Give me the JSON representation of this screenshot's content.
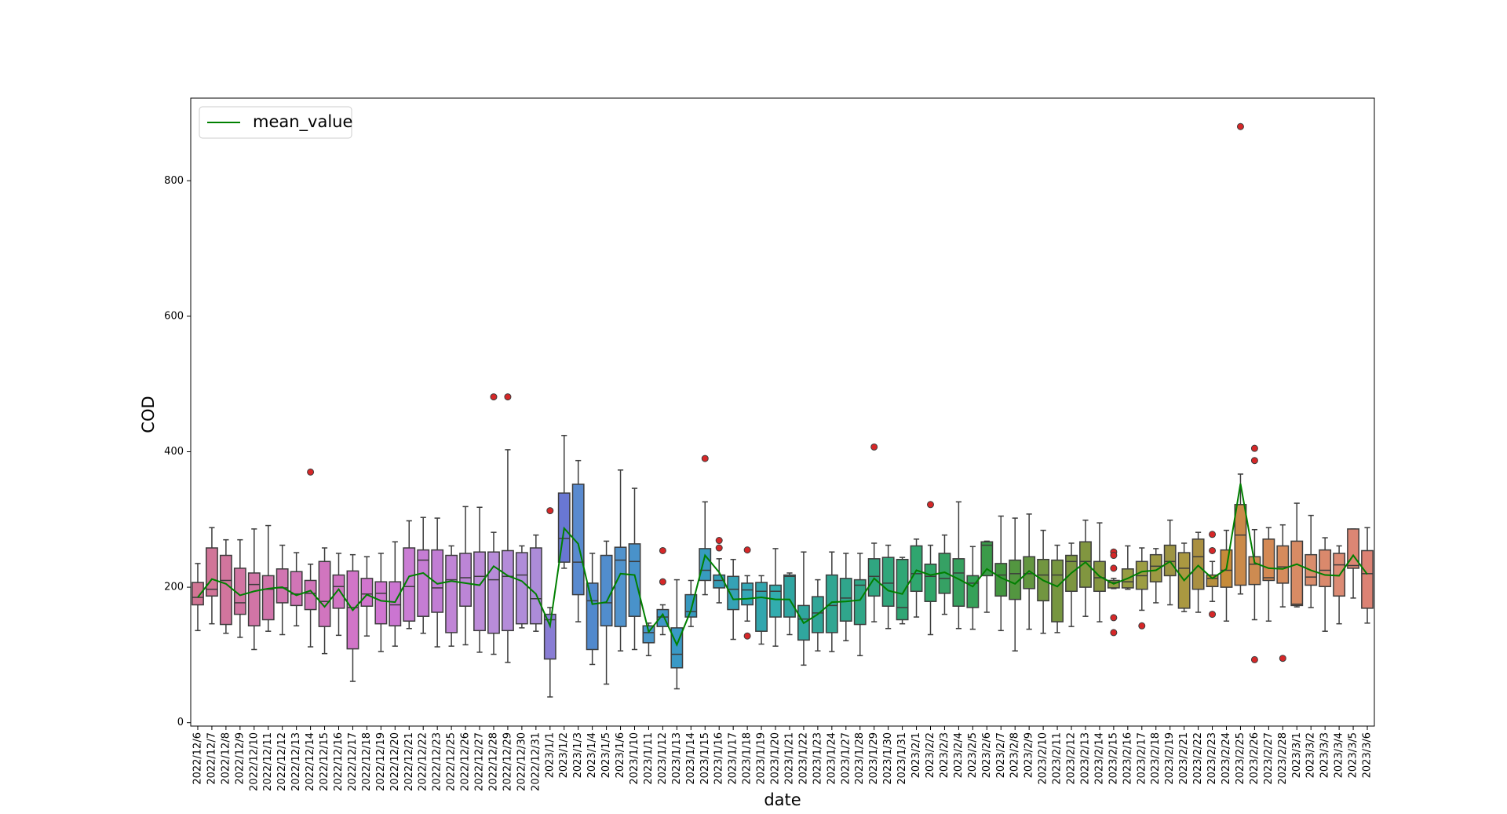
{
  "chart_data": {
    "type": "box",
    "x_label": "date",
    "y_label": "COD",
    "categories": [
      "2022/12/6",
      "2022/12/7",
      "2022/12/8",
      "2022/12/9",
      "2022/12/10",
      "2022/12/11",
      "2022/12/12",
      "2022/12/13",
      "2022/12/14",
      "2022/12/15",
      "2022/12/16",
      "2022/12/17",
      "2022/12/18",
      "2022/12/19",
      "2022/12/20",
      "2022/12/21",
      "2022/12/22",
      "2022/12/23",
      "2022/12/25",
      "2022/12/26",
      "2022/12/27",
      "2022/12/28",
      "2022/12/29",
      "2022/12/30",
      "2022/12/31",
      "2023/1/1",
      "2023/1/2",
      "2023/1/3",
      "2023/1/4",
      "2023/1/5",
      "2023/1/6",
      "2023/1/10",
      "2023/1/11",
      "2023/1/12",
      "2023/1/13",
      "2023/1/14",
      "2023/1/15",
      "2023/1/16",
      "2023/1/17",
      "2023/1/18",
      "2023/1/19",
      "2023/1/20",
      "2023/1/21",
      "2023/1/22",
      "2023/1/23",
      "2023/1/24",
      "2023/1/27",
      "2023/1/28",
      "2023/1/29",
      "2023/1/30",
      "2023/1/31",
      "2023/2/1",
      "2023/2/2",
      "2023/2/3",
      "2023/2/4",
      "2023/2/5",
      "2023/2/6",
      "2023/2/7",
      "2023/2/8",
      "2023/2/9",
      "2023/2/10",
      "2023/2/11",
      "2023/2/12",
      "2023/2/13",
      "2023/2/14",
      "2023/2/15",
      "2023/2/16",
      "2023/2/17",
      "2023/2/18",
      "2023/2/19",
      "2023/2/21",
      "2023/2/22",
      "2023/2/23",
      "2023/2/24",
      "2023/2/25",
      "2023/2/26",
      "2023/2/27",
      "2023/2/28",
      "2023/3/1",
      "2023/3/2",
      "2023/3/3",
      "2023/3/4",
      "2023/3/5",
      "2023/3/6"
    ],
    "whisker_low": [
      136,
      146,
      132,
      126,
      108,
      135,
      130,
      143,
      112,
      102,
      129,
      61,
      128,
      105,
      113,
      139,
      132,
      112,
      113,
      115,
      104,
      101,
      89,
      140,
      135,
      38,
      228,
      149,
      86,
      57,
      106,
      108,
      99,
      130,
      50,
      142,
      189,
      177,
      123,
      150,
      116,
      113,
      130,
      85,
      106,
      105,
      121,
      99,
      149,
      139,
      146,
      156,
      130,
      160,
      139,
      138,
      163,
      136,
      106,
      138,
      132,
      133,
      142,
      157,
      149,
      198,
      197,
      166,
      177,
      174,
      164,
      163,
      179,
      150,
      190,
      152,
      150,
      171,
      171,
      170,
      135,
      146,
      184,
      147
    ],
    "q1": [
      174,
      187,
      145,
      160,
      143,
      152,
      177,
      173,
      167,
      142,
      169,
      109,
      172,
      146,
      143,
      150,
      157,
      163,
      133,
      172,
      136,
      132,
      136,
      146,
      146,
      94,
      237,
      189,
      108,
      143,
      142,
      157,
      118,
      142,
      81,
      156,
      210,
      199,
      167,
      174,
      135,
      156,
      156,
      122,
      133,
      133,
      150,
      145,
      187,
      172,
      152,
      194,
      179,
      191,
      172,
      170,
      217,
      187,
      182,
      198,
      180,
      149,
      194,
      200,
      194,
      199,
      199,
      197,
      208,
      217,
      169,
      197,
      201,
      200,
      203,
      204,
      210,
      206,
      173,
      203,
      201,
      187,
      228,
      169
    ],
    "median": [
      185,
      197,
      210,
      177,
      204,
      197,
      199,
      190,
      191,
      179,
      201,
      170,
      190,
      191,
      174,
      201,
      240,
      199,
      211,
      214,
      216,
      211,
      216,
      218,
      183,
      152,
      272,
      237,
      180,
      177,
      240,
      238,
      133,
      156,
      101,
      164,
      225,
      210,
      197,
      196,
      194,
      194,
      216,
      153,
      162,
      173,
      184,
      203,
      216,
      206,
      170,
      220,
      216,
      213,
      221,
      206,
      262,
      218,
      220,
      220,
      218,
      218,
      238,
      238,
      214,
      207,
      208,
      217,
      231,
      238,
      228,
      245,
      213,
      225,
      277,
      234,
      214,
      230,
      175,
      215,
      225,
      233,
      232,
      220
    ],
    "q3": [
      207,
      258,
      247,
      228,
      221,
      217,
      227,
      223,
      210,
      238,
      218,
      224,
      213,
      208,
      208,
      258,
      255,
      255,
      247,
      250,
      252,
      252,
      254,
      251,
      258,
      160,
      339,
      352,
      206,
      247,
      259,
      264,
      143,
      167,
      140,
      189,
      257,
      218,
      216,
      206,
      207,
      203,
      218,
      173,
      186,
      218,
      213,
      211,
      242,
      244,
      241,
      261,
      234,
      250,
      242,
      217,
      267,
      235,
      240,
      245,
      241,
      240,
      247,
      267,
      238,
      210,
      227,
      238,
      248,
      262,
      251,
      271,
      218,
      255,
      322,
      245,
      271,
      261,
      268,
      248,
      255,
      250,
      286,
      254
    ],
    "whisker_high": [
      235,
      288,
      270,
      270,
      286,
      291,
      262,
      251,
      234,
      258,
      250,
      248,
      245,
      250,
      267,
      298,
      303,
      302,
      261,
      319,
      318,
      281,
      403,
      261,
      277,
      170,
      424,
      387,
      250,
      268,
      373,
      346,
      147,
      174,
      211,
      210,
      326,
      242,
      241,
      217,
      217,
      257,
      221,
      252,
      211,
      252,
      250,
      250,
      265,
      262,
      244,
      271,
      262,
      277,
      326,
      260,
      268,
      305,
      302,
      308,
      284,
      262,
      265,
      299,
      295,
      213,
      261,
      258,
      257,
      299,
      265,
      281,
      238,
      284,
      367,
      285,
      288,
      292,
      324,
      306,
      273,
      261,
      286,
      288
    ],
    "outliers": [
      [],
      [],
      [],
      [],
      [],
      [],
      [],
      [],
      [
        370
      ],
      [],
      [],
      [],
      [],
      [],
      [],
      [],
      [],
      [],
      [],
      [],
      [],
      [
        481
      ],
      [
        481
      ],
      [],
      [],
      [
        313
      ],
      [],
      [],
      [],
      [],
      [],
      [],
      [],
      [
        254,
        208
      ],
      [],
      [],
      [
        390
      ],
      [
        269,
        258
      ],
      [],
      [
        255,
        128
      ],
      [],
      [],
      [],
      [],
      [],
      [],
      [],
      [],
      [
        407
      ],
      [],
      [],
      [],
      [
        322
      ],
      [],
      [],
      [],
      [],
      [],
      [],
      [],
      [],
      [],
      [],
      [],
      [],
      [
        252,
        247,
        228,
        155,
        133
      ],
      [],
      [
        143
      ],
      [],
      [],
      [],
      [],
      [
        278,
        254,
        160
      ],
      [],
      [
        880
      ],
      [
        405,
        387,
        93
      ],
      [],
      [
        95
      ],
      [],
      [],
      [],
      [],
      [],
      []
    ],
    "colors": [
      "hsl(340,50%,64%)",
      "hsl(337,50%,64%)",
      "hsl(334,50%,64%)",
      "hsl(331,50%,64%)",
      "hsl(328,50%,64%)",
      "hsl(324,50%,64%)",
      "hsl(321,50%,64%)",
      "hsl(318,50%,64%)",
      "hsl(315,50%,64%)",
      "hsl(312,50%,64%)",
      "hsl(309,50%,64%)",
      "hsl(306,50%,64%)",
      "hsl(302,50%,64%)",
      "hsl(299,50%,64%)",
      "hsl(296,50%,64%)",
      "hsl(293,50%,66%)",
      "hsl(290,50%,66%)",
      "hsl(287,50%,66%)",
      "hsl(284,50%,68%)",
      "hsl(281,50%,68%)",
      "hsl(278,50%,70%)",
      "hsl(274,50%,70%)",
      "hsl(271,50%,70%)",
      "hsl(268,50%,70%)",
      "hsl(265,50%,70%)",
      "hsl(248,50%,66%)",
      "hsl(232,55%,62%)",
      "hsl(215,55%,58%)",
      "hsl(213,55%,56%)",
      "hsl(211,55%,56%)",
      "hsl(208,55%,56%)",
      "hsl(206,55%,54%)",
      "hsl(204,55%,54%)",
      "hsl(202,55%,52%)",
      "hsl(199,55%,50%)",
      "hsl(197,55%,48%)",
      "hsl(195,55%,48%)",
      "hsl(192,55%,46%)",
      "hsl(189,55%,46%)",
      "hsl(187,55%,46%)",
      "hsl(184,55%,44%)",
      "hsl(181,55%,44%)",
      "hsl(178,55%,42%)",
      "hsl(176,55%,42%)",
      "hsl(173,55%,42%)",
      "hsl(170,55%,42%)",
      "hsl(167,55%,42%)",
      "hsl(164,55%,42%)",
      "hsl(161,55%,42%)",
      "hsl(158,55%,42%)",
      "hsl(155,55%,42%)",
      "hsl(152,55%,42%)",
      "hsl(149,55%,42%)",
      "hsl(146,50%,42%)",
      "hsl(143,50%,42%)",
      "hsl(140,50%,42%)",
      "hsl(129,45%,42%)",
      "hsl(118,40%,42%)",
      "hsl(107,40%,42%)",
      "hsl(96,40%,42%)",
      "hsl(85,40%,42%)",
      "hsl(82,40%,42%)",
      "hsl(78,40%,42%)",
      "hsl(75,40%,42%)",
      "hsl(71,40%,42%)",
      "hsl(68,40%,44%)",
      "hsl(64,40%,44%)",
      "hsl(61,40%,44%)",
      "hsl(57,40%,44%)",
      "hsl(54,40%,44%)",
      "hsl(50,45%,46%)",
      "hsl(45,45%,46%)",
      "hsl(40,50%,48%)",
      "hsl(35,55%,50%)",
      "hsl(30,55%,54%)",
      "hsl(28,55%,56%)",
      "hsl(25,60%,58%)",
      "hsl(23,60%,60%)",
      "hsl(20,60%,62%)",
      "hsl(18,60%,64%)",
      "hsl(16,60%,64%)",
      "hsl(13,60%,66%)",
      "hsl(10,60%,66%)",
      "hsl(8,60%,66%)"
    ],
    "lines": [
      {
        "name": "mean_value",
        "color": "green",
        "values": [
          185,
          212,
          205,
          188,
          194,
          198,
          200,
          188,
          195,
          171,
          197,
          166,
          189,
          180,
          178,
          216,
          221,
          205,
          209,
          206,
          203,
          231,
          217,
          209,
          190,
          143,
          287,
          264,
          175,
          178,
          220,
          218,
          134,
          160,
          115,
          166,
          247,
          222,
          182,
          183,
          185,
          182,
          182,
          147,
          160,
          178,
          179,
          181,
          213,
          195,
          190,
          225,
          218,
          222,
          212,
          201,
          227,
          214,
          205,
          224,
          210,
          201,
          221,
          237,
          216,
          205,
          213,
          223,
          225,
          238,
          210,
          232,
          213,
          227,
          353,
          236,
          228,
          227,
          234,
          225,
          218,
          217,
          247,
          219
        ]
      }
    ],
    "outlier_color": "#d62728",
    "ylim": [
      -5,
      922
    ],
    "yticks": [
      0,
      200,
      400,
      600,
      800
    ],
    "legend": "upper left",
    "grid": false
  }
}
